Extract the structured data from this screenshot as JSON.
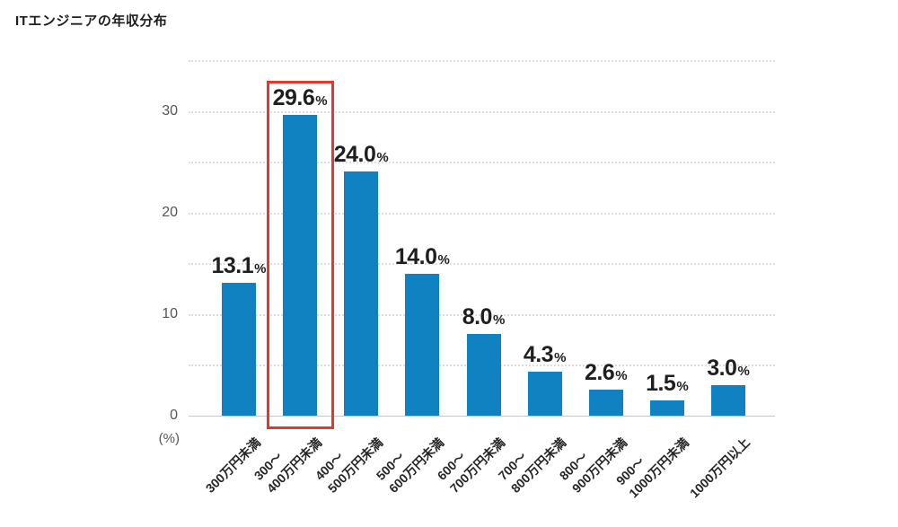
{
  "title": "ITエンジニアの年収分布",
  "chart_data": {
    "type": "bar",
    "title": "ITエンジニアの年収分布",
    "categories": [
      "300万円未満",
      "300〜400万円未満",
      "400〜500万円未満",
      "500〜600万円未満",
      "600〜700万円未満",
      "700〜800万円未満",
      "800〜900万円未満",
      "900〜1000万円未満",
      "1000万円以上"
    ],
    "category_lines": [
      [
        "300万円未満"
      ],
      [
        "300〜",
        "400万円未満"
      ],
      [
        "400〜",
        "500万円未満"
      ],
      [
        "500〜",
        "600万円未満"
      ],
      [
        "600〜",
        "700万円未満"
      ],
      [
        "700〜",
        "800万円未満"
      ],
      [
        "800〜",
        "900万円未満"
      ],
      [
        "900〜",
        "1000万円未満"
      ],
      [
        "1000万円以上"
      ]
    ],
    "values": [
      13.1,
      29.6,
      24.0,
      14.0,
      8.0,
      4.3,
      2.6,
      1.5,
      3.0
    ],
    "value_labels": [
      "13.1",
      "29.6",
      "24.0",
      "14.0",
      "8.0",
      "4.3",
      "2.6",
      "1.5",
      "3.0"
    ],
    "unit_suffix": "%",
    "ylabel": "(%)",
    "yticks": [
      0,
      10,
      20,
      30
    ],
    "ylim": [
      0,
      35
    ],
    "grid_step": 5,
    "grid": true,
    "legend": false,
    "highlight_index": 1,
    "colors": {
      "bar": "#1081c1",
      "highlight_box": "#e03a2e",
      "grid": "#dedede",
      "axis": "#c6c6c6",
      "value_text": "#1f1f1f",
      "tick_text": "#555555",
      "title_text": "#1e1e1e"
    }
  }
}
